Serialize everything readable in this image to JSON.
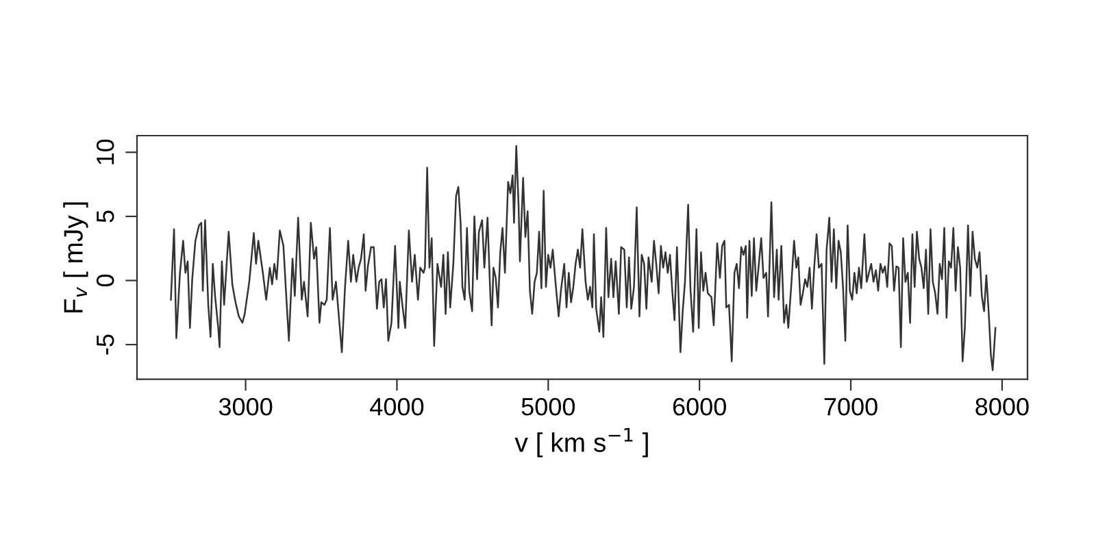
{
  "chart_data": {
    "type": "line",
    "xlabel": "v [ km s$^{−1}$ ]",
    "ylabel": "F$_{v}$ [ mJy ]",
    "xlim": [
      2282,
      8168
    ],
    "ylim": [
      -7.7,
      11.3
    ],
    "xticks": [
      3000,
      4000,
      5000,
      6000,
      7000,
      8000
    ],
    "yticks": [
      -5,
      0,
      5,
      10
    ],
    "marker": "none",
    "line_style": "solid",
    "series": [
      {
        "color": "#333333",
        "x": [
          2506,
          2527,
          2542,
          2566,
          2587,
          2602,
          2617,
          2632,
          2647,
          2668,
          2692,
          2707,
          2717,
          2732,
          2753,
          2768,
          2783,
          2798,
          2819,
          2828,
          2843,
          2858,
          2873,
          2888,
          2912,
          2933,
          2955,
          2979,
          2994,
          3024,
          3054,
          3069,
          3084,
          3114,
          3136,
          3160,
          3175,
          3190,
          3205,
          3226,
          3250,
          3265,
          3286,
          3310,
          3325,
          3347,
          3371,
          3386,
          3410,
          3431,
          3452,
          3467,
          3488,
          3500,
          3521,
          3536,
          3557,
          3575,
          3597,
          3612,
          3636,
          3657,
          3678,
          3696,
          3711,
          3732,
          3747,
          3763,
          3781,
          3793,
          3808,
          3829,
          3847,
          3868,
          3883,
          3898,
          3913,
          3928,
          3943,
          3964,
          3988,
          4010,
          4019,
          4034,
          4055,
          4079,
          4100,
          4118,
          4139,
          4154,
          4176,
          4185,
          4200,
          4215,
          4230,
          4246,
          4268,
          4292,
          4307,
          4322,
          4337,
          4352,
          4373,
          4391,
          4406,
          4421,
          4433,
          4448,
          4463,
          4478,
          4497,
          4512,
          4530,
          4542,
          4563,
          4578,
          4599,
          4614,
          4626,
          4638,
          4653,
          4668,
          4683,
          4698,
          4714,
          4735,
          4750,
          4765,
          4774,
          4789,
          4804,
          4813,
          4834,
          4849,
          4864,
          4879,
          4894,
          4910,
          4925,
          4940,
          4955,
          4970,
          4985,
          5000,
          5015,
          5030,
          5048,
          5069,
          5084,
          5106,
          5121,
          5136,
          5151,
          5166,
          5181,
          5196,
          5211,
          5226,
          5247,
          5262,
          5277,
          5292,
          5302,
          5317,
          5338,
          5350,
          5365,
          5383,
          5398,
          5416,
          5431,
          5446,
          5467,
          5482,
          5503,
          5519,
          5534,
          5549,
          5567,
          5585,
          5603,
          5618,
          5634,
          5649,
          5663,
          5684,
          5699,
          5714,
          5730,
          5745,
          5760,
          5775,
          5790,
          5805,
          5820,
          5835,
          5851,
          5874,
          5889,
          5904,
          5925,
          5940,
          5958,
          5980,
          5995,
          6010,
          6025,
          6040,
          6055,
          6079,
          6094,
          6117,
          6135,
          6150,
          6165,
          6177,
          6195,
          6213,
          6231,
          6246,
          6261,
          6276,
          6291,
          6306,
          6315,
          6330,
          6345,
          6360,
          6375,
          6390,
          6408,
          6423,
          6441,
          6453,
          6475,
          6493,
          6511,
          6523,
          6541,
          6559,
          6574,
          6587,
          6607,
          6625,
          6640,
          6653,
          6668,
          6683,
          6698,
          6713,
          6728,
          6743,
          6758,
          6774,
          6789,
          6807,
          6825,
          6840,
          6858,
          6873,
          6888,
          6904,
          6919,
          6934,
          6949,
          6964,
          6979,
          6994,
          7009,
          7024,
          7039,
          7054,
          7069,
          7090,
          7105,
          7120,
          7135,
          7150,
          7166,
          7181,
          7196,
          7211,
          7226,
          7241,
          7256,
          7271,
          7286,
          7301,
          7316,
          7331,
          7346,
          7361,
          7377,
          7392,
          7407,
          7422,
          7437,
          7452,
          7467,
          7482,
          7497,
          7512,
          7527,
          7542,
          7558,
          7573,
          7588,
          7603,
          7618,
          7633,
          7648,
          7663,
          7678,
          7693,
          7708,
          7723,
          7739,
          7754,
          7775,
          7790,
          7805,
          7820,
          7836,
          7851,
          7866,
          7881,
          7896,
          7911,
          7926,
          7938,
          7956
        ],
        "values": [
          -1.5,
          4.0,
          -4.5,
          0.6,
          3.1,
          0.6,
          1.5,
          -3.7,
          0.1,
          3.1,
          4.3,
          4.5,
          -0.8,
          4.7,
          -1.9,
          -4.4,
          1.3,
          -1.2,
          -3.7,
          -5.2,
          1.5,
          -1.9,
          1.0,
          3.8,
          -0.3,
          -1.7,
          -2.8,
          -3.3,
          -2.6,
          -0.1,
          3.7,
          1.3,
          3.1,
          0.6,
          -1.5,
          1.0,
          -0.3,
          1.3,
          0.1,
          3.9,
          2.7,
          -0.5,
          -4.7,
          1.7,
          -1.2,
          4.9,
          -1.5,
          -0.1,
          -2.8,
          4.5,
          1.7,
          2.6,
          -3.3,
          -1.7,
          -1.9,
          -1.5,
          4.1,
          -1.5,
          -0.1,
          -2.2,
          -5.6,
          -0.5,
          3.1,
          -0.1,
          2.0,
          -0.1,
          1.0,
          1.7,
          3.6,
          -0.8,
          1.1,
          2.6,
          2.6,
          -2.2,
          -0.1,
          0.1,
          -2.1,
          0.1,
          -4.7,
          -3.3,
          2.7,
          -3.7,
          -0.1,
          -1.7,
          -3.7,
          3.9,
          -0.1,
          2.0,
          -1.5,
          1.0,
          0.6,
          1.0,
          8.8,
          1.0,
          3.3,
          -5.1,
          1.3,
          -0.5,
          2.0,
          -2.6,
          2.2,
          -2.1,
          1.3,
          6.6,
          7.3,
          4.5,
          -0.5,
          -1.5,
          4.1,
          -0.8,
          -2.4,
          5.0,
          0.1,
          3.8,
          4.7,
          1.0,
          4.9,
          -0.1,
          -3.5,
          1.0,
          0.2,
          -2.1,
          2.2,
          4.1,
          0.6,
          7.7,
          6.8,
          8.2,
          4.5,
          10.5,
          5.9,
          1.5,
          8.0,
          3.4,
          5.4,
          -0.8,
          -2.6,
          -0.1,
          0.6,
          3.8,
          -0.6,
          7.0,
          -0.5,
          2.0,
          1.0,
          2.4,
          -0.1,
          -2.8,
          -0.8,
          1.3,
          -2.1,
          0.6,
          -1.7,
          -0.5,
          1.3,
          2.4,
          1.0,
          4.0,
          -0.1,
          -1.5,
          -0.5,
          -2.1,
          3.6,
          -2.2,
          -4.0,
          -1.3,
          -4.4,
          4.1,
          -1.3,
          1.7,
          -1.3,
          1.5,
          -2.6,
          2.6,
          2.4,
          -2.1,
          1.8,
          -2.2,
          -0.5,
          5.7,
          -2.8,
          2.0,
          1.3,
          -2.2,
          1.8,
          -0.1,
          3.1,
          1.3,
          -1.0,
          2.7,
          1.0,
          2.2,
          0.6,
          2.0,
          -0.8,
          -3.1,
          2.6,
          -5.6,
          -2.4,
          -0.1,
          5.9,
          -0.6,
          -4.0,
          4.0,
          -3.7,
          2.2,
          -0.8,
          0.6,
          -1.0,
          -1.3,
          -3.5,
          2.9,
          0.2,
          2.7,
          3.1,
          -2.1,
          -1.9,
          -6.3,
          0.6,
          1.3,
          -0.6,
          2.6,
          2.0,
          2.7,
          -2.9,
          3.1,
          -1.2,
          3.3,
          -0.8,
          1.0,
          3.3,
          0.2,
          0.6,
          -2.8,
          6.1,
          -1.3,
          2.4,
          -1.5,
          2.7,
          -3.3,
          -1.9,
          -3.7,
          -0.3,
          3.1,
          1.0,
          1.8,
          -1.9,
          -1.0,
          0.1,
          -0.5,
          1.0,
          -2.2,
          1.0,
          3.6,
          1.0,
          1.3,
          -6.5,
          2.4,
          4.9,
          -0.1,
          4.0,
          -0.6,
          3.1,
          2.2,
          -0.6,
          -4.7,
          4.3,
          -0.8,
          -1.5,
          0.6,
          -1.0,
          1.0,
          -0.6,
          3.6,
          -0.1,
          0.6,
          1.3,
          -0.1,
          0.8,
          -0.8,
          1.3,
          0.6,
          1.1,
          -0.5,
          2.9,
          2.7,
          -0.8,
          1.1,
          1.0,
          -5.2,
          3.3,
          -0.1,
          0.6,
          -3.3,
          3.6,
          -0.5,
          3.8,
          1.7,
          1.0,
          -0.6,
          2.4,
          -2.6,
          4.0,
          -0.1,
          -1.0,
          -2.6,
          1.3,
          0.1,
          4.1,
          -2.9,
          1.5,
          1.0,
          4.1,
          -0.8,
          2.6,
          1.0,
          -6.3,
          -3.7,
          4.3,
          -1.2,
          3.8,
          1.7,
          1.0,
          2.2,
          -1.2,
          -2.4,
          0.4,
          -2.4,
          -5.8,
          -7.0,
          -3.7
        ]
      }
    ]
  }
}
